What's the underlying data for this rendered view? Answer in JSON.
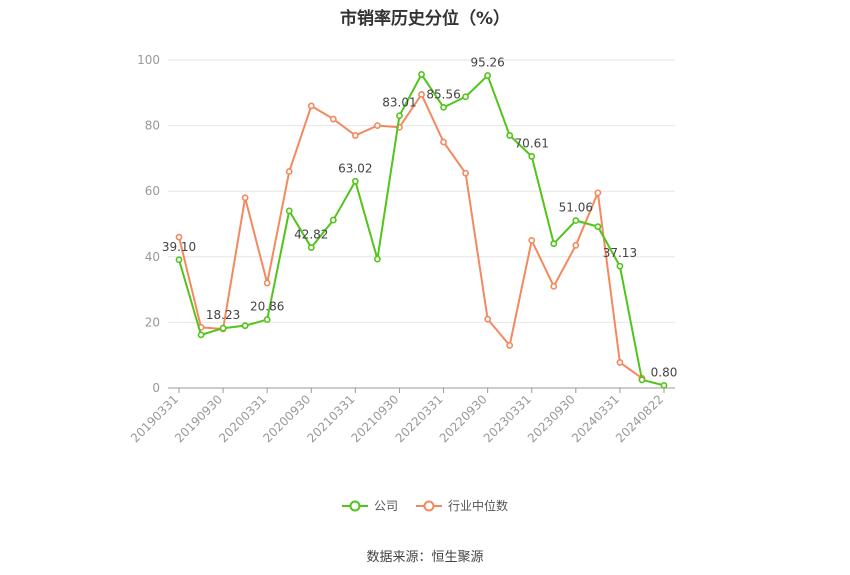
{
  "chart_data": {
    "type": "line",
    "title": "市销率历史分位（%）",
    "xlabel": "",
    "ylabel": "",
    "ylim": [
      0,
      100
    ],
    "yticks": [
      0,
      20,
      40,
      60,
      80,
      100
    ],
    "x": [
      "20190331",
      "20190630",
      "20190930",
      "20191231",
      "20200331",
      "20200630",
      "20200930",
      "20201231",
      "20210331",
      "20210630",
      "20210930",
      "20211231",
      "20220331",
      "20220630",
      "20220930",
      "20221231",
      "20230331",
      "20230630",
      "20230930",
      "20231231",
      "20240331",
      "20240630",
      "20240822"
    ],
    "xtick_labels": [
      "20190331",
      "20190930",
      "20200331",
      "20200930",
      "20210331",
      "20210930",
      "20220331",
      "20220930",
      "20230331",
      "20230930",
      "20240331",
      "20240822"
    ],
    "grid": true,
    "legend_position": "bottom",
    "series": [
      {
        "name": "公司",
        "color": "#52c41a",
        "values": [
          39.1,
          16.2,
          18.23,
          19.0,
          20.86,
          54.0,
          42.82,
          51.2,
          63.02,
          39.3,
          83.01,
          95.6,
          85.56,
          88.8,
          95.26,
          77.0,
          70.61,
          44.0,
          51.06,
          49.2,
          37.13,
          2.5,
          0.8
        ],
        "labels": [
          "39.10",
          "",
          "18.23",
          "",
          "20.86",
          "",
          "42.82",
          "",
          "63.02",
          "",
          "83.01",
          "",
          "85.56",
          "",
          "95.26",
          "",
          "70.61",
          "",
          "51.06",
          "",
          "37.13",
          "",
          "0.80"
        ]
      },
      {
        "name": "行业中位数",
        "color": "#f4895f",
        "values": [
          46.0,
          18.5,
          18.0,
          58.0,
          32.0,
          66.0,
          86.0,
          82.0,
          77.0,
          80.0,
          79.5,
          89.5,
          75.0,
          65.5,
          21.0,
          13.0,
          45.0,
          31.0,
          43.5,
          59.5,
          7.8,
          3.0,
          null
        ],
        "labels": []
      }
    ]
  },
  "source": "数据来源：恒生聚源"
}
